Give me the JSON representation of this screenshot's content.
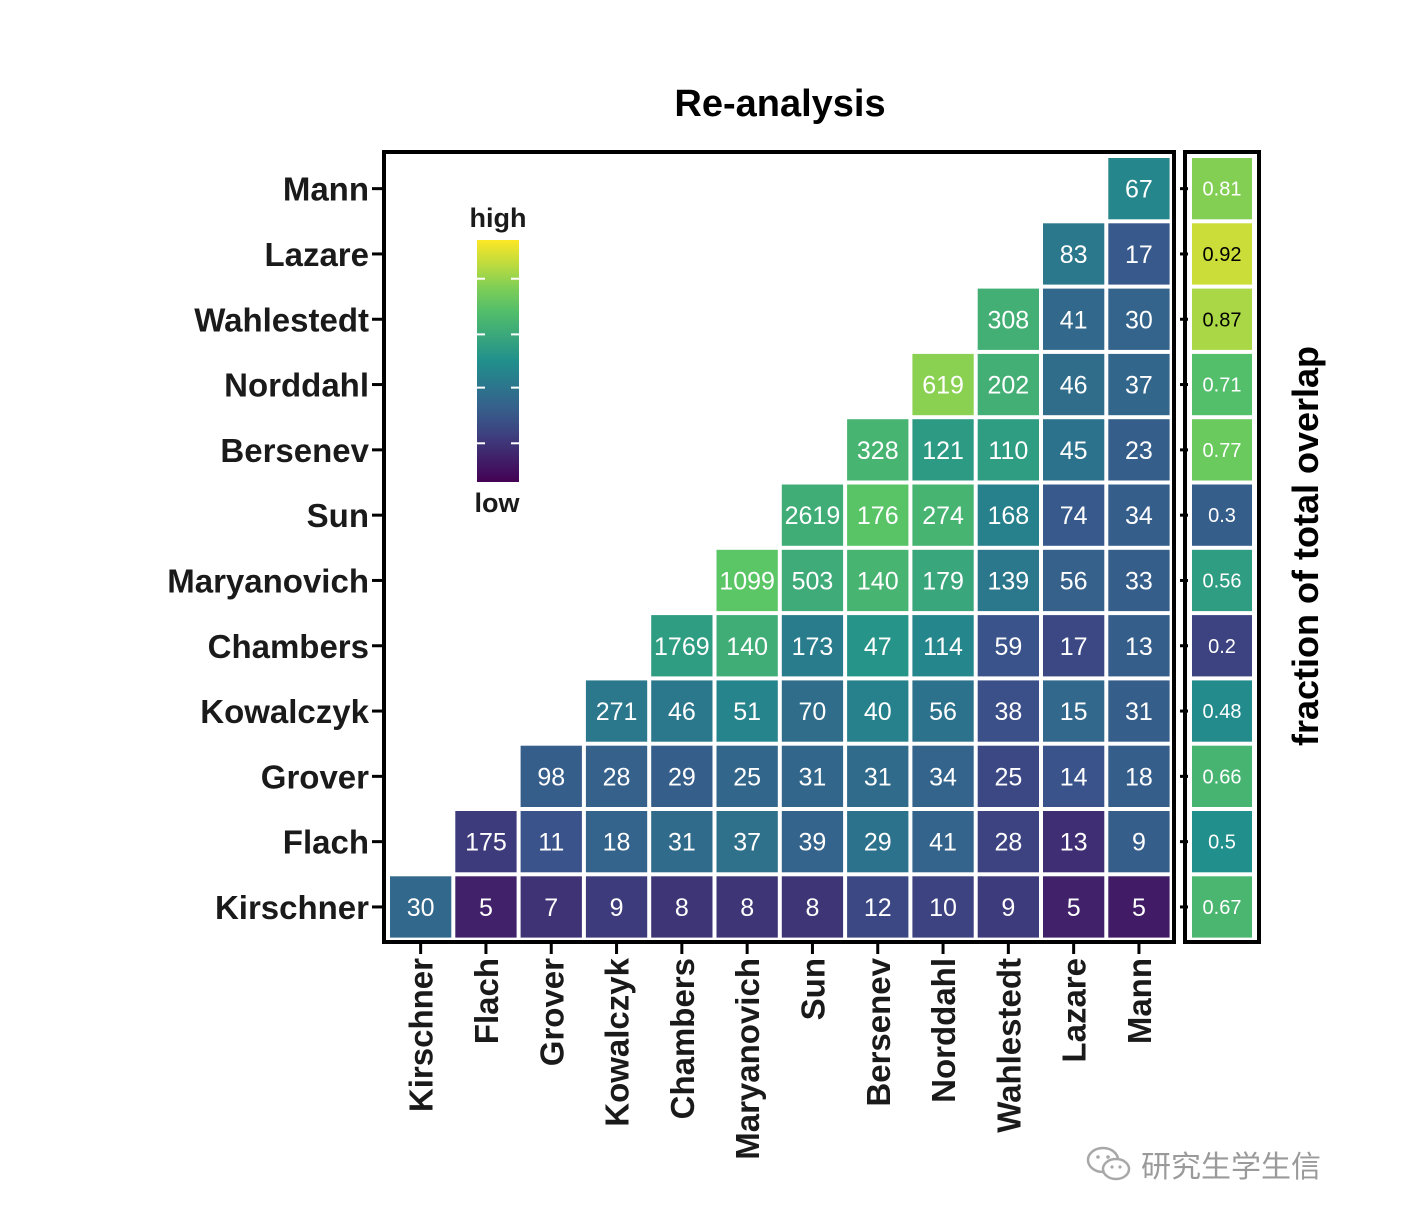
{
  "chart_data": {
    "type": "heatmap",
    "title": "Re-analysis",
    "side_label": "fraction of  total overlap",
    "legend": {
      "high": "high",
      "low": "low",
      "placement": "top-left inside panel"
    },
    "colormap": [
      "#440154",
      "#3b528b",
      "#21908c",
      "#5dc863",
      "#fde725"
    ],
    "columns": [
      "Kirschner",
      "Flach",
      "Grover",
      "Kowalczyk",
      "Chambers",
      "Maryanovich",
      "Sun",
      "Bersenev",
      "Norddahl",
      "Wahlestedt",
      "Lazare",
      "Mann"
    ],
    "rows": [
      "Mann",
      "Lazare",
      "Wahlestedt",
      "Norddahl",
      "Bersenev",
      "Sun",
      "Maryanovich",
      "Chambers",
      "Kowalczyk",
      "Grover",
      "Flach",
      "Kirschner"
    ],
    "cells": [
      [
        "Mann",
        "Mann",
        "67"
      ],
      [
        "Lazare",
        "Lazare",
        "83"
      ],
      [
        "Lazare",
        "Mann",
        "17"
      ],
      [
        "Wahlestedt",
        "Wahlestedt",
        "308"
      ],
      [
        "Wahlestedt",
        "Lazare",
        "41"
      ],
      [
        "Wahlestedt",
        "Mann",
        "30"
      ],
      [
        "Norddahl",
        "Norddahl",
        "619"
      ],
      [
        "Norddahl",
        "Wahlestedt",
        "202"
      ],
      [
        "Norddahl",
        "Lazare",
        "46"
      ],
      [
        "Norddahl",
        "Mann",
        "37"
      ],
      [
        "Bersenev",
        "Bersenev",
        "328"
      ],
      [
        "Bersenev",
        "Norddahl",
        "121"
      ],
      [
        "Bersenev",
        "Wahlestedt",
        "110"
      ],
      [
        "Bersenev",
        "Lazare",
        "45"
      ],
      [
        "Bersenev",
        "Mann",
        "23"
      ],
      [
        "Sun",
        "Sun",
        "2619"
      ],
      [
        "Sun",
        "Bersenev",
        "176"
      ],
      [
        "Sun",
        "Norddahl",
        "274"
      ],
      [
        "Sun",
        "Wahlestedt",
        "168"
      ],
      [
        "Sun",
        "Lazare",
        "74"
      ],
      [
        "Sun",
        "Mann",
        "34"
      ],
      [
        "Maryanovich",
        "Maryanovich",
        "1099"
      ],
      [
        "Maryanovich",
        "Sun",
        "503"
      ],
      [
        "Maryanovich",
        "Bersenev",
        "140"
      ],
      [
        "Maryanovich",
        "Norddahl",
        "179"
      ],
      [
        "Maryanovich",
        "Wahlestedt",
        "139"
      ],
      [
        "Maryanovich",
        "Lazare",
        "56"
      ],
      [
        "Maryanovich",
        "Mann",
        "33"
      ],
      [
        "Chambers",
        "Chambers",
        "1769"
      ],
      [
        "Chambers",
        "Maryanovich",
        "140"
      ],
      [
        "Chambers",
        "Sun",
        "173"
      ],
      [
        "Chambers",
        "Bersenev",
        "47"
      ],
      [
        "Chambers",
        "Norddahl",
        "114"
      ],
      [
        "Chambers",
        "Wahlestedt",
        "59"
      ],
      [
        "Chambers",
        "Lazare",
        "17"
      ],
      [
        "Chambers",
        "Mann",
        "13"
      ],
      [
        "Kowalczyk",
        "Kowalczyk",
        "271"
      ],
      [
        "Kowalczyk",
        "Chambers",
        "46"
      ],
      [
        "Kowalczyk",
        "Maryanovich",
        "51"
      ],
      [
        "Kowalczyk",
        "Sun",
        "70"
      ],
      [
        "Kowalczyk",
        "Bersenev",
        "40"
      ],
      [
        "Kowalczyk",
        "Norddahl",
        "56"
      ],
      [
        "Kowalczyk",
        "Wahlestedt",
        "38"
      ],
      [
        "Kowalczyk",
        "Lazare",
        "15"
      ],
      [
        "Kowalczyk",
        "Mann",
        "31"
      ],
      [
        "Grover",
        "Grover",
        "98"
      ],
      [
        "Grover",
        "Kowalczyk",
        "28"
      ],
      [
        "Grover",
        "Chambers",
        "29"
      ],
      [
        "Grover",
        "Maryanovich",
        "25"
      ],
      [
        "Grover",
        "Sun",
        "31"
      ],
      [
        "Grover",
        "Bersenev",
        "31"
      ],
      [
        "Grover",
        "Norddahl",
        "34"
      ],
      [
        "Grover",
        "Wahlestedt",
        "25"
      ],
      [
        "Grover",
        "Lazare",
        "14"
      ],
      [
        "Grover",
        "Mann",
        "18"
      ],
      [
        "Flach",
        "Flach",
        "175"
      ],
      [
        "Flach",
        "Grover",
        "11"
      ],
      [
        "Flach",
        "Kowalczyk",
        "18"
      ],
      [
        "Flach",
        "Chambers",
        "31"
      ],
      [
        "Flach",
        "Maryanovich",
        "37"
      ],
      [
        "Flach",
        "Sun",
        "39"
      ],
      [
        "Flach",
        "Bersenev",
        "29"
      ],
      [
        "Flach",
        "Norddahl",
        "41"
      ],
      [
        "Flach",
        "Wahlestedt",
        "28"
      ],
      [
        "Flach",
        "Lazare",
        "13"
      ],
      [
        "Flach",
        "Mann",
        "9"
      ],
      [
        "Kirschner",
        "Kirschner",
        "30"
      ],
      [
        "Kirschner",
        "Flach",
        "5"
      ],
      [
        "Kirschner",
        "Grover",
        "7"
      ],
      [
        "Kirschner",
        "Kowalczyk",
        "9"
      ],
      [
        "Kirschner",
        "Chambers",
        "8"
      ],
      [
        "Kirschner",
        "Maryanovich",
        "8"
      ],
      [
        "Kirschner",
        "Sun",
        "8"
      ],
      [
        "Kirschner",
        "Bersenev",
        "12"
      ],
      [
        "Kirschner",
        "Norddahl",
        "10"
      ],
      [
        "Kirschner",
        "Wahlestedt",
        "9"
      ],
      [
        "Kirschner",
        "Lazare",
        "5"
      ],
      [
        "Kirschner",
        "Mann",
        "5"
      ]
    ],
    "cell_color_levels": [
      [
        null,
        null,
        null,
        null,
        null,
        null,
        null,
        null,
        null,
        null,
        null,
        0.46
      ],
      [
        null,
        null,
        null,
        null,
        null,
        null,
        null,
        null,
        null,
        null,
        0.4,
        0.28
      ],
      [
        null,
        null,
        null,
        null,
        null,
        null,
        null,
        null,
        null,
        0.64,
        0.34,
        0.32
      ],
      [
        null,
        null,
        null,
        null,
        null,
        null,
        null,
        null,
        0.82,
        0.64,
        0.36,
        0.33
      ],
      [
        null,
        null,
        null,
        null,
        null,
        null,
        null,
        0.66,
        0.55,
        0.56,
        0.38,
        0.3
      ],
      [
        null,
        null,
        null,
        null,
        null,
        0.98,
        0.63,
        0.73,
        0.66,
        0.44,
        0.28,
        null
      ],
      [
        null,
        null,
        null,
        null,
        0.86,
        0.74,
        0.62,
        0.66,
        0.6,
        0.4,
        0.31,
        null
      ],
      [
        null,
        null,
        null,
        0.92,
        0.56,
        0.63,
        0.42,
        0.52,
        0.46,
        0.26,
        0.22,
        null
      ],
      [
        null,
        null,
        0.68,
        0.4,
        0.4,
        0.45,
        0.36,
        0.44,
        0.38,
        0.24,
        0.34,
        null
      ],
      [
        null,
        0.58,
        0.3,
        0.31,
        0.3,
        0.33,
        0.33,
        0.35,
        0.32,
        0.22,
        0.26,
        null
      ],
      [
        0.64,
        0.18,
        0.26,
        0.32,
        0.35,
        0.37,
        0.32,
        0.38,
        0.32,
        0.2,
        0.14,
        null
      ],
      [
        0.34,
        0.1,
        0.15,
        0.18,
        0.16,
        0.16,
        0.16,
        0.22,
        0.2,
        0.18,
        0.1,
        0.08
      ]
    ],
    "fraction_of_total_overlap": [
      {
        "row": "Mann",
        "value": 0.81
      },
      {
        "row": "Lazare",
        "value": 0.92
      },
      {
        "row": "Wahlestedt",
        "value": 0.87
      },
      {
        "row": "Norddahl",
        "value": 0.71
      },
      {
        "row": "Bersenev",
        "value": 0.77
      },
      {
        "row": "Sun",
        "value": 0.3
      },
      {
        "row": "Maryanovich",
        "value": 0.56
      },
      {
        "row": "Chambers",
        "value": 0.2
      },
      {
        "row": "Kowalczyk",
        "value": 0.48
      },
      {
        "row": "Grover",
        "value": 0.66
      },
      {
        "row": "Flach",
        "value": 0.5
      },
      {
        "row": "Kirschner",
        "value": 0.67
      }
    ]
  },
  "watermark": {
    "text": "研究生学生信",
    "icon": "wechat-icon"
  }
}
